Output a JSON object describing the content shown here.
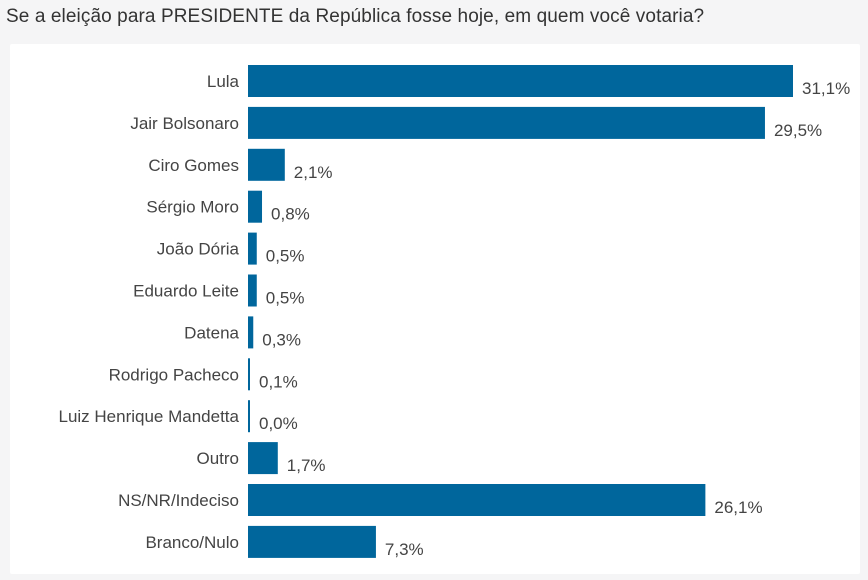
{
  "chart_data": {
    "type": "bar",
    "orientation": "horizontal",
    "title": "Se a eleição para PRESIDENTE da República fosse hoje, em quem você votaria?",
    "categories": [
      "Lula",
      "Jair Bolsonaro",
      "Ciro Gomes",
      "Sérgio Moro",
      "João Dória",
      "Eduardo Leite",
      "Datena",
      "Rodrigo Pacheco",
      "Luiz Henrique Mandetta",
      "Outro",
      "NS/NR/Indeciso",
      "Branco/Nulo"
    ],
    "values": [
      31.1,
      29.5,
      2.1,
      0.8,
      0.5,
      0.5,
      0.3,
      0.1,
      0.0,
      1.7,
      26.1,
      7.3
    ],
    "value_labels": [
      "31,1%",
      "29,5%",
      "2,1%",
      "0,8%",
      "0,5%",
      "0,5%",
      "0,3%",
      "0,1%",
      "0,0%",
      "1,7%",
      "26,1%",
      "7,3%"
    ],
    "xlim": [
      0,
      31.1
    ],
    "grid": false,
    "bar_color": "#00669c"
  }
}
